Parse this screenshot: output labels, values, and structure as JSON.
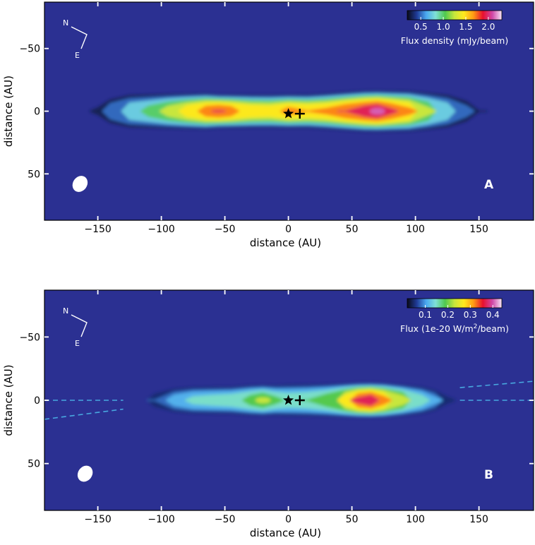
{
  "chart_data": [
    {
      "type": "heatmap",
      "panel_label": "A",
      "xlabel": "distance (AU)",
      "ylabel": "distance (AU)",
      "xlim": [
        -192,
        193
      ],
      "ylim": [
        -87,
        87
      ],
      "y_inverted": true,
      "xticks": [
        -150,
        -100,
        -50,
        0,
        50,
        100,
        150
      ],
      "yticks": [
        -50,
        0,
        50
      ],
      "xtick_labels": [
        "−150",
        "−100",
        "−50",
        "0",
        "50",
        "100",
        "150"
      ],
      "ytick_labels": [
        "−50",
        "0",
        "50"
      ],
      "colorbar": {
        "label": "Flux density (mJy/beam)",
        "ticks": [
          0.5,
          1.0,
          1.5,
          2.0
        ],
        "tick_labels": [
          "0.5",
          "1.0",
          "1.5",
          "2.0"
        ],
        "range": [
          0.2,
          2.3
        ],
        "placement": "top-right",
        "colors": [
          "#0a0a18",
          "#1f3a96",
          "#4aa8f0",
          "#7fe0d6",
          "#4fc84f",
          "#c8e63c",
          "#ffe81e",
          "#ff9a14",
          "#e8102e",
          "#d048a8",
          "#f6e6f6"
        ]
      },
      "background_color": "#2b3092",
      "compass": {
        "north": "N",
        "east": "E"
      },
      "beam_center": [
        -164,
        58
      ],
      "star": [
        0,
        2
      ],
      "cross": [
        9,
        2
      ],
      "disk_profile": [
        {
          "x": -150,
          "halfwidth": 7,
          "level": 0.35
        },
        {
          "x": -140,
          "halfwidth": 12,
          "level": 0.7
        },
        {
          "x": -125,
          "halfwidth": 15,
          "level": 0.95
        },
        {
          "x": -110,
          "halfwidth": 15,
          "level": 1.1
        },
        {
          "x": -95,
          "halfwidth": 15,
          "level": 1.35
        },
        {
          "x": -80,
          "halfwidth": 15,
          "level": 1.6
        },
        {
          "x": -65,
          "halfwidth": 15,
          "level": 1.85
        },
        {
          "x": -55,
          "halfwidth": 14,
          "level": 1.95
        },
        {
          "x": -45,
          "halfwidth": 14,
          "level": 1.85
        },
        {
          "x": -30,
          "halfwidth": 14,
          "level": 1.65
        },
        {
          "x": -15,
          "halfwidth": 14,
          "level": 1.6
        },
        {
          "x": 0,
          "halfwidth": 14,
          "level": 1.8
        },
        {
          "x": 15,
          "halfwidth": 14,
          "level": 1.7
        },
        {
          "x": 30,
          "halfwidth": 15,
          "level": 1.75
        },
        {
          "x": 45,
          "halfwidth": 16,
          "level": 1.95
        },
        {
          "x": 60,
          "halfwidth": 17,
          "level": 2.1
        },
        {
          "x": 70,
          "halfwidth": 17,
          "level": 2.2
        },
        {
          "x": 80,
          "halfwidth": 17,
          "level": 2.0
        },
        {
          "x": 95,
          "halfwidth": 17,
          "level": 1.75
        },
        {
          "x": 110,
          "halfwidth": 16,
          "level": 1.3
        },
        {
          "x": 125,
          "halfwidth": 15,
          "level": 0.95
        },
        {
          "x": 140,
          "halfwidth": 11,
          "level": 0.6
        },
        {
          "x": 150,
          "halfwidth": 7,
          "level": 0.3
        }
      ]
    },
    {
      "type": "heatmap",
      "panel_label": "B",
      "xlabel": "distance (AU)",
      "ylabel": "distance (AU)",
      "xlim": [
        -192,
        193
      ],
      "ylim": [
        -87,
        87
      ],
      "y_inverted": true,
      "xticks": [
        -150,
        -100,
        -50,
        0,
        50,
        100,
        150
      ],
      "yticks": [
        -50,
        0,
        50
      ],
      "xtick_labels": [
        "−150",
        "−100",
        "−50",
        "0",
        "50",
        "100",
        "150"
      ],
      "ytick_labels": [
        "−50",
        "0",
        "50"
      ],
      "colorbar": {
        "label_before": "Flux (1e-20 W/m",
        "label_sup": "2",
        "label_after": "/beam)",
        "ticks": [
          0.1,
          0.2,
          0.3,
          0.4
        ],
        "tick_labels": [
          "0.1",
          "0.2",
          "0.3",
          "0.4"
        ],
        "range": [
          0.02,
          0.44
        ],
        "placement": "top-right",
        "colors": [
          "#0a0a18",
          "#1f3a96",
          "#4aa8f0",
          "#7fe0d6",
          "#4fc84f",
          "#c8e63c",
          "#ffe81e",
          "#ff9a14",
          "#e8102e",
          "#d048a8",
          "#f6e6f6"
        ]
      },
      "background_color": "#2b3092",
      "compass": {
        "north": "N",
        "east": "E"
      },
      "beam_center": [
        -160,
        58
      ],
      "star": [
        0,
        0
      ],
      "cross": [
        9,
        0
      ],
      "dashed_lines": [
        {
          "from": [
            -192,
            0
          ],
          "to": [
            -130,
            0
          ]
        },
        {
          "from": [
            -192,
            15
          ],
          "to": [
            -130,
            7
          ]
        },
        {
          "from": [
            135,
            0
          ],
          "to": [
            193,
            0
          ]
        },
        {
          "from": [
            135,
            -10
          ],
          "to": [
            193,
            -15
          ]
        }
      ],
      "disk_profile": [
        {
          "x": -105,
          "halfwidth": 8,
          "level": 0.08
        },
        {
          "x": -90,
          "halfwidth": 11,
          "level": 0.13
        },
        {
          "x": -75,
          "halfwidth": 12,
          "level": 0.16
        },
        {
          "x": -60,
          "halfwidth": 12,
          "level": 0.17
        },
        {
          "x": -45,
          "halfwidth": 12,
          "level": 0.18
        },
        {
          "x": -30,
          "halfwidth": 13,
          "level": 0.21
        },
        {
          "x": -20,
          "halfwidth": 13,
          "level": 0.24
        },
        {
          "x": -10,
          "halfwidth": 13,
          "level": 0.2
        },
        {
          "x": 0,
          "halfwidth": 14,
          "level": 0.18
        },
        {
          "x": 15,
          "halfwidth": 14,
          "level": 0.19
        },
        {
          "x": 30,
          "halfwidth": 14,
          "level": 0.22
        },
        {
          "x": 45,
          "halfwidth": 14,
          "level": 0.3
        },
        {
          "x": 55,
          "halfwidth": 14,
          "level": 0.38
        },
        {
          "x": 65,
          "halfwidth": 14,
          "level": 0.41
        },
        {
          "x": 75,
          "halfwidth": 14,
          "level": 0.34
        },
        {
          "x": 90,
          "halfwidth": 13,
          "level": 0.25
        },
        {
          "x": 105,
          "halfwidth": 12,
          "level": 0.17
        },
        {
          "x": 115,
          "halfwidth": 10,
          "level": 0.12
        },
        {
          "x": 125,
          "halfwidth": 6,
          "level": 0.06
        }
      ]
    }
  ]
}
